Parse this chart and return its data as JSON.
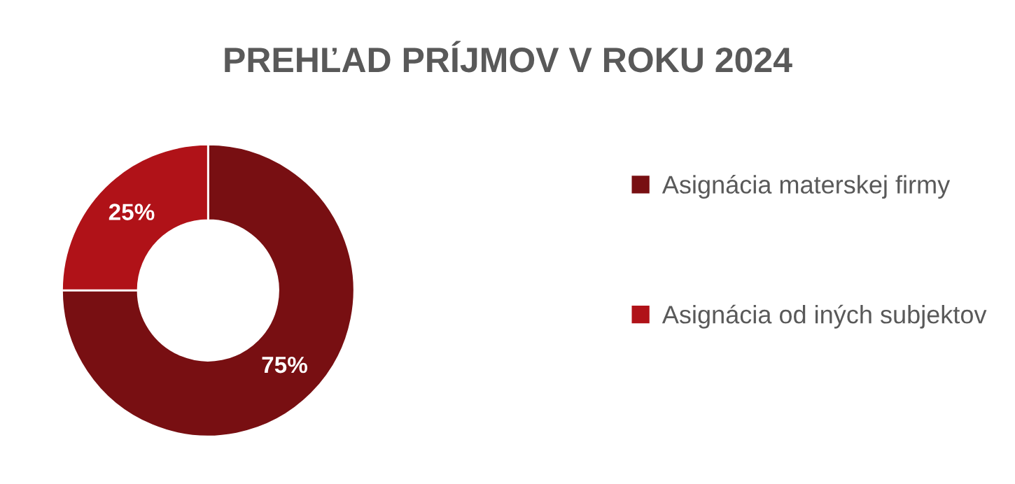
{
  "chart_data": {
    "type": "donut",
    "title": "PREHĽAD PRÍJMOV V ROKU 2024",
    "categories": [
      "Asignácia materskej firmy",
      "Asignácia od iných subjektov"
    ],
    "values": [
      75,
      25
    ],
    "colors": [
      "#780f12",
      "#b01218"
    ],
    "value_labels": [
      "75%",
      "25%"
    ],
    "legend": "right"
  }
}
